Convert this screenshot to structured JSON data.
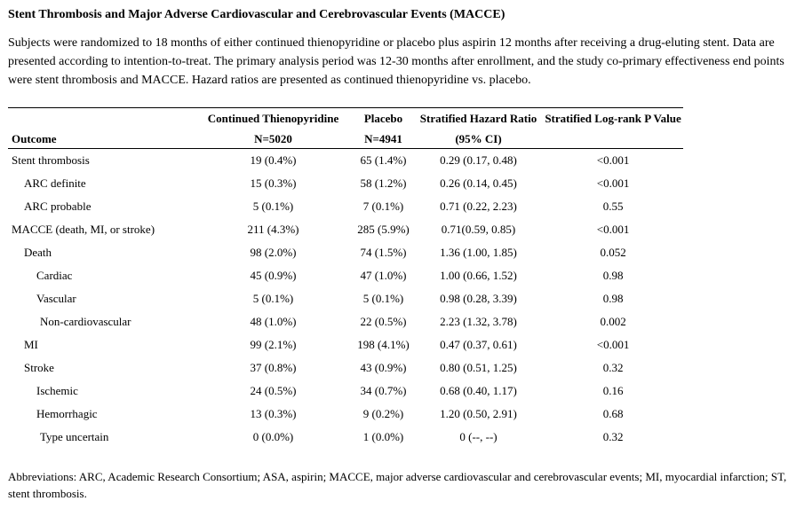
{
  "title": "Stent Thrombosis and Major Adverse Cardiovascular and Cerebrovascular Events (MACCE)",
  "intro": "Subjects were randomized to 18 months of either continued thienopyridine or placebo plus aspirin 12 months after receiving a drug-eluting stent. Data are presented according to intention-to-treat. The primary analysis period was 12-30 months after enrollment, and the study co-primary effectiveness end points were stent thrombosis and MACCE. Hazard ratios are presented as continued thienopyridine vs. placebo.",
  "table": {
    "headers": {
      "outcome": "Outcome",
      "thieno_line1": "Continued Thienopyridine",
      "thieno_line2": "N=5020",
      "placebo_line1": "Placebo",
      "placebo_line2": "N=4941",
      "hr_line1": "Stratified Hazard Ratio",
      "hr_line2": "(95% CI)",
      "p_line1": "Stratified Log-rank P Value"
    },
    "rows": [
      {
        "outcome": "Stent thrombosis",
        "thieno": "19 (0.4%)",
        "placebo": "65 (1.4%)",
        "hr": "0.29 (0.17, 0.48)",
        "p": "<0.001"
      },
      {
        "outcome": "ARC definite",
        "thieno": "15 (0.3%)",
        "placebo": "58 (1.2%)",
        "hr": "0.26 (0.14, 0.45)",
        "p": "<0.001"
      },
      {
        "outcome": "ARC probable",
        "thieno": "5 (0.1%)",
        "placebo": "7 (0.1%)",
        "hr": "0.71 (0.22, 2.23)",
        "p": "0.55"
      },
      {
        "outcome": "MACCE (death, MI, or stroke)",
        "thieno": "211 (4.3%)",
        "placebo": "285 (5.9%)",
        "hr": "0.71(0.59, 0.85)",
        "p": "<0.001"
      },
      {
        "outcome": "Death",
        "thieno": "98 (2.0%)",
        "placebo": "74 (1.5%)",
        "hr": "1.36 (1.00, 1.85)",
        "p": "0.052"
      },
      {
        "outcome": "Cardiac",
        "thieno": "45 (0.9%)",
        "placebo": "47 (1.0%)",
        "hr": "1.00 (0.66, 1.52)",
        "p": "0.98"
      },
      {
        "outcome": "Vascular",
        "thieno": "5 (0.1%)",
        "placebo": "5 (0.1%)",
        "hr": "0.98 (0.28, 3.39)",
        "p": "0.98"
      },
      {
        "outcome": "Non-cardiovascular",
        "thieno": "48 (1.0%)",
        "placebo": "22 (0.5%)",
        "hr": "2.23 (1.32, 3.78)",
        "p": "0.002"
      },
      {
        "outcome": "MI",
        "thieno": "99 (2.1%)",
        "placebo": "198 (4.1%)",
        "hr": "0.47 (0.37, 0.61)",
        "p": "<0.001"
      },
      {
        "outcome": "Stroke",
        "thieno": "37 (0.8%)",
        "placebo": "43 (0.9%)",
        "hr": "0.80 (0.51, 1.25)",
        "p": "0.32"
      },
      {
        "outcome": "Ischemic",
        "thieno": "24 (0.5%)",
        "placebo": "34 (0.7%)",
        "hr": "0.68 (0.40, 1.17)",
        "p": "0.16"
      },
      {
        "outcome": "Hemorrhagic",
        "thieno": "13 (0.3%)",
        "placebo": "9 (0.2%)",
        "hr": "1.20 (0.50, 2.91)",
        "p": "0.68"
      },
      {
        "outcome": "Type uncertain",
        "thieno": "0 (0.0%)",
        "placebo": "1 (0.0%)",
        "hr": "0 (--, --)",
        "p": "0.32"
      }
    ]
  },
  "footnote": "Abbreviations: ARC, Academic Research Consortium; ASA, aspirin; MACCE, major adverse cardiovascular and cerebrovascular events; MI, myocardial infarction; ST, stent thrombosis."
}
